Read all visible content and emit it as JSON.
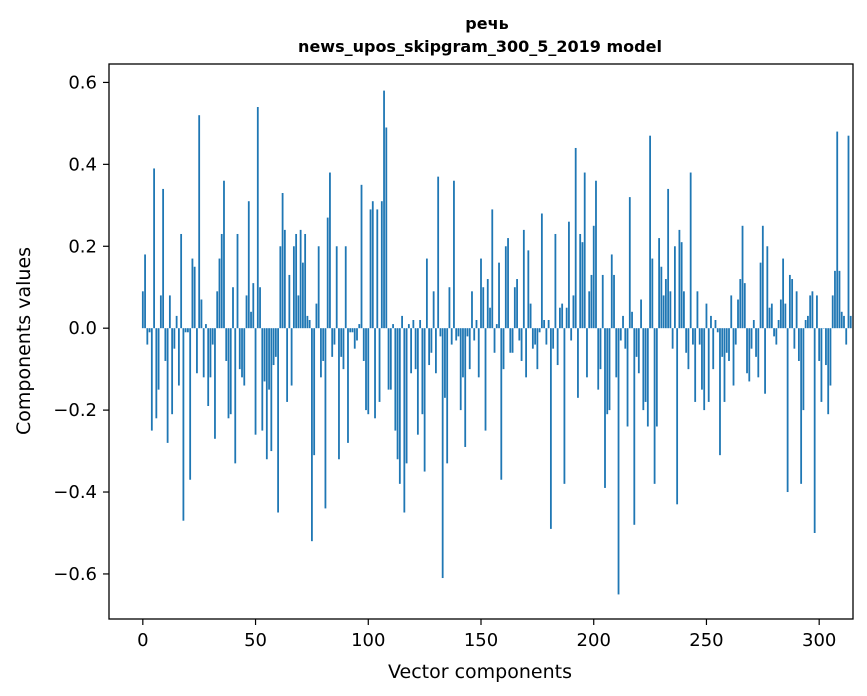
{
  "chart_data": {
    "type": "bar",
    "title": "речь",
    "subtitle": "news_upos_skipgram_300_5_2019 model",
    "xlabel": "Vector components",
    "ylabel": "Components values",
    "xlim": [
      -15,
      315
    ],
    "ylim": [
      -0.71,
      0.645
    ],
    "xticks": [
      0,
      50,
      100,
      150,
      200,
      250,
      300
    ],
    "xtick_labels": [
      "0",
      "50",
      "100",
      "150",
      "200",
      "250",
      "300"
    ],
    "yticks": [
      -0.6,
      -0.4,
      -0.2,
      0.0,
      0.2,
      0.4,
      0.6
    ],
    "ytick_labels": [
      "−0.6",
      "−0.4",
      "−0.2",
      "0.0",
      "0.2",
      "0.4",
      "0.6"
    ],
    "grid": false,
    "bar_color": "#1f77b4",
    "values": [
      0.09,
      0.18,
      -0.04,
      -0.01,
      -0.25,
      0.39,
      -0.22,
      -0.15,
      0.08,
      0.34,
      -0.08,
      -0.28,
      0.08,
      -0.21,
      -0.05,
      0.03,
      -0.14,
      0.23,
      -0.47,
      -0.01,
      -0.01,
      -0.37,
      0.17,
      0.15,
      -0.11,
      0.52,
      0.07,
      -0.12,
      0.01,
      -0.19,
      -0.12,
      -0.04,
      -0.27,
      0.09,
      0.17,
      0.23,
      0.36,
      -0.08,
      -0.22,
      -0.21,
      0.1,
      -0.33,
      0.23,
      -0.1,
      -0.12,
      -0.14,
      0.08,
      0.31,
      0.04,
      0.11,
      -0.26,
      0.54,
      0.1,
      -0.25,
      -0.13,
      -0.32,
      -0.15,
      -0.3,
      -0.09,
      -0.07,
      -0.45,
      0.2,
      0.33,
      0.24,
      -0.18,
      0.13,
      -0.14,
      0.2,
      0.23,
      0.08,
      0.24,
      0.16,
      0.23,
      0.03,
      0.02,
      -0.52,
      -0.31,
      0.06,
      0.2,
      -0.12,
      -0.08,
      -0.44,
      0.27,
      0.38,
      -0.07,
      -0.04,
      0.2,
      -0.32,
      -0.07,
      -0.1,
      0.2,
      -0.28,
      -0.01,
      -0.01,
      -0.05,
      -0.03,
      0.01,
      0.35,
      -0.08,
      -0.2,
      -0.21,
      0.29,
      0.31,
      -0.22,
      0.29,
      -0.18,
      0.31,
      0.58,
      0.49,
      -0.15,
      -0.15,
      0.01,
      -0.25,
      -0.32,
      -0.38,
      0.03,
      -0.45,
      -0.33,
      0.01,
      -0.11,
      0.02,
      -0.1,
      -0.26,
      0.02,
      -0.21,
      -0.35,
      0.17,
      -0.09,
      -0.06,
      0.09,
      -0.11,
      0.37,
      -0.02,
      -0.61,
      -0.17,
      -0.33,
      0.1,
      -0.04,
      0.36,
      -0.03,
      -0.02,
      -0.2,
      -0.12,
      -0.29,
      -0.02,
      -0.1,
      0.09,
      -0.03,
      0.02,
      -0.12,
      0.17,
      0.1,
      -0.25,
      0.12,
      0.05,
      0.29,
      -0.06,
      0.01,
      0.16,
      -0.37,
      -0.1,
      0.2,
      0.22,
      -0.06,
      -0.06,
      0.1,
      0.12,
      -0.03,
      -0.08,
      0.24,
      -0.12,
      0.19,
      0.06,
      -0.05,
      -0.04,
      -0.1,
      -0.01,
      0.28,
      0.02,
      -0.04,
      0.02,
      -0.49,
      -0.05,
      0.23,
      -0.09,
      0.05,
      0.06,
      -0.38,
      0.05,
      0.26,
      -0.03,
      0.08,
      0.44,
      -0.17,
      0.23,
      0.21,
      0.38,
      -0.12,
      0.09,
      0.13,
      0.25,
      0.36,
      -0.15,
      -0.1,
      0.13,
      -0.39,
      -0.21,
      -0.2,
      0.18,
      0.13,
      -0.12,
      -0.65,
      -0.03,
      0.03,
      -0.05,
      -0.24,
      0.32,
      0.04,
      -0.48,
      -0.07,
      -0.11,
      0.07,
      -0.2,
      -0.18,
      -0.24,
      0.47,
      0.17,
      -0.38,
      -0.24,
      0.22,
      0.15,
      0.08,
      0.12,
      0.34,
      0.09,
      -0.05,
      0.2,
      -0.43,
      0.24,
      0.21,
      0.09,
      -0.06,
      -0.1,
      0.38,
      -0.04,
      -0.18,
      0.09,
      -0.04,
      -0.15,
      -0.2,
      0.06,
      -0.18,
      0.03,
      -0.1,
      0.02,
      -0.01,
      -0.31,
      -0.07,
      -0.18,
      -0.06,
      -0.08,
      0.08,
      -0.14,
      -0.04,
      0.07,
      0.12,
      0.25,
      0.11,
      -0.11,
      -0.13,
      -0.05,
      0.02,
      -0.07,
      -0.12,
      0.16,
      0.25,
      -0.16,
      0.2,
      0.05,
      0.06,
      -0.02,
      -0.04,
      0.02,
      0.07,
      0.17,
      0.06,
      -0.4,
      0.13,
      0.12,
      -0.05,
      0.09,
      -0.08,
      -0.38,
      -0.2,
      0.02,
      0.03,
      0.08,
      0.09,
      -0.5,
      0.08,
      -0.08,
      -0.18,
      0.0,
      -0.09,
      -0.21,
      -0.14,
      0.08,
      0.14,
      0.48,
      0.14,
      0.04,
      0.03,
      -0.04,
      0.47,
      0.03
    ]
  }
}
